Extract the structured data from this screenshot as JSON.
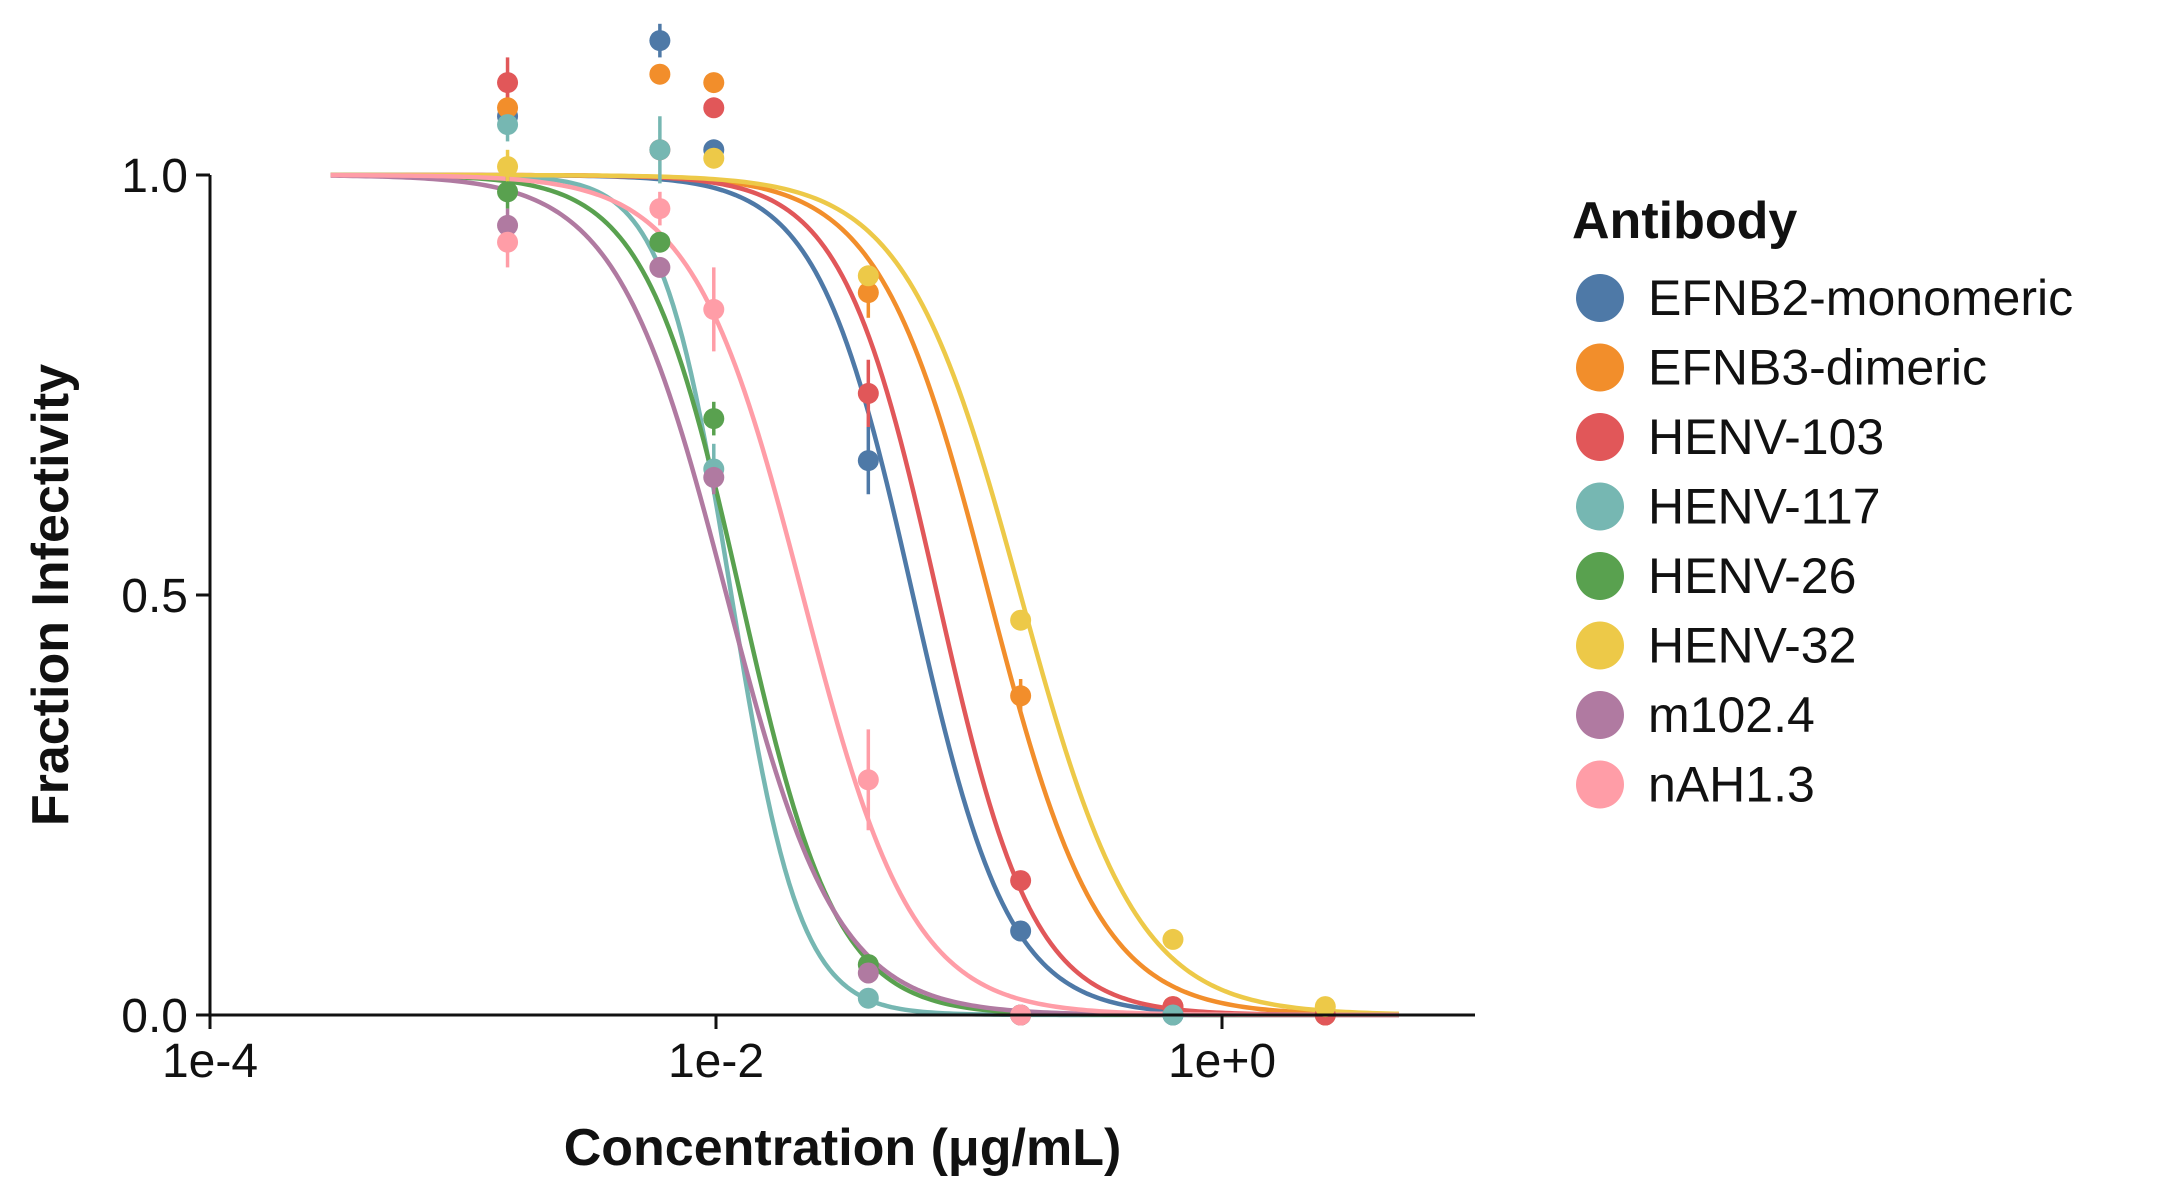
{
  "chart_data": {
    "type": "line",
    "xscale": "log",
    "xlabel": "Concentration (μg/mL)",
    "ylabel": "Fraction Infectivity",
    "xlim": [
      0.0001,
      10
    ],
    "ylim": [
      0,
      1
    ],
    "x_ticks": [
      {
        "value": 0.0001,
        "label": "1e-4"
      },
      {
        "value": 0.01,
        "label": "1e-2"
      },
      {
        "value": 1,
        "label": "1e+0"
      }
    ],
    "y_ticks": [
      {
        "value": 0,
        "label": "0.0"
      },
      {
        "value": 0.5,
        "label": "0.5"
      },
      {
        "value": 1,
        "label": "1.0"
      }
    ],
    "grid": false,
    "legend": {
      "title": "Antibody",
      "position": "right"
    },
    "curve_x_range": [
      0.0003,
      5
    ],
    "series": [
      {
        "name": "EFNB2-monomeric",
        "color": "#4e79a7",
        "ic50": 0.06,
        "hill": 2.3,
        "points": [
          {
            "x": 0.0015,
            "y": 1.07,
            "err": 0.02
          },
          {
            "x": 0.006,
            "y": 1.16,
            "err": 0.02
          },
          {
            "x": 0.0098,
            "y": 1.03,
            "err": 0.01
          },
          {
            "x": 0.04,
            "y": 0.66,
            "err": 0.04
          },
          {
            "x": 0.16,
            "y": 0.1,
            "err": 0.01
          },
          {
            "x": 0.64,
            "y": 0.0,
            "err": 0.005
          },
          {
            "x": 2.56,
            "y": 0.0,
            "err": 0.005
          }
        ]
      },
      {
        "name": "EFNB3-dimeric",
        "color": "#f28e2b",
        "ic50": 0.12,
        "hill": 2.0,
        "points": [
          {
            "x": 0.0015,
            "y": 1.08,
            "err": 0.02
          },
          {
            "x": 0.006,
            "y": 1.12,
            "err": 0.01
          },
          {
            "x": 0.0098,
            "y": 1.11,
            "err": 0.01
          },
          {
            "x": 0.04,
            "y": 0.86,
            "err": 0.03
          },
          {
            "x": 0.16,
            "y": 0.38,
            "err": 0.02
          },
          {
            "x": 0.64,
            "y": 0.01,
            "err": 0.005
          },
          {
            "x": 2.56,
            "y": 0.0,
            "err": 0.005
          }
        ]
      },
      {
        "name": "HENV-103",
        "color": "#e15759",
        "ic50": 0.075,
        "hill": 2.3,
        "points": [
          {
            "x": 0.0015,
            "y": 1.11,
            "err": 0.03
          },
          {
            "x": 0.006,
            "y": 1.03,
            "err": 0.01
          },
          {
            "x": 0.0098,
            "y": 1.08,
            "err": 0.01
          },
          {
            "x": 0.04,
            "y": 0.74,
            "err": 0.04
          },
          {
            "x": 0.16,
            "y": 0.16,
            "err": 0.01
          },
          {
            "x": 0.64,
            "y": 0.01,
            "err": 0.005
          },
          {
            "x": 2.56,
            "y": 0.0,
            "err": 0.005
          }
        ]
      },
      {
        "name": "HENV-117",
        "color": "#76b7b2",
        "ic50": 0.0115,
        "hill": 3.2,
        "points": [
          {
            "x": 0.0015,
            "y": 1.06,
            "err": 0.02
          },
          {
            "x": 0.006,
            "y": 1.03,
            "err": 0.04
          },
          {
            "x": 0.0098,
            "y": 0.65,
            "err": 0.03
          },
          {
            "x": 0.04,
            "y": 0.02,
            "err": 0.005
          },
          {
            "x": 0.16,
            "y": 0.0,
            "err": 0.005
          },
          {
            "x": 0.64,
            "y": 0.0,
            "err": 0.005
          }
        ]
      },
      {
        "name": "HENV-26",
        "color": "#59a14f",
        "ic50": 0.0125,
        "hill": 2.3,
        "points": [
          {
            "x": 0.0015,
            "y": 0.98,
            "err": 0.02
          },
          {
            "x": 0.006,
            "y": 0.92,
            "err": 0.01
          },
          {
            "x": 0.0098,
            "y": 0.71,
            "err": 0.02
          },
          {
            "x": 0.04,
            "y": 0.06,
            "err": 0.01
          },
          {
            "x": 0.16,
            "y": 0.0,
            "err": 0.005
          }
        ]
      },
      {
        "name": "HENV-32",
        "color": "#edc948",
        "ic50": 0.16,
        "hill": 1.9,
        "points": [
          {
            "x": 0.0015,
            "y": 1.01,
            "err": 0.02
          },
          {
            "x": 0.0098,
            "y": 1.02,
            "err": 0.01
          },
          {
            "x": 0.04,
            "y": 0.88,
            "err": 0.01
          },
          {
            "x": 0.16,
            "y": 0.47,
            "err": 0.01
          },
          {
            "x": 0.64,
            "y": 0.09,
            "err": 0.01
          },
          {
            "x": 2.56,
            "y": 0.01,
            "err": 0.005
          }
        ]
      },
      {
        "name": "m102.4",
        "color": "#b07aa1",
        "ic50": 0.011,
        "hill": 2.0,
        "points": [
          {
            "x": 0.0015,
            "y": 0.94,
            "err": 0.02
          },
          {
            "x": 0.006,
            "y": 0.89,
            "err": 0.01
          },
          {
            "x": 0.0098,
            "y": 0.64,
            "err": 0.02
          },
          {
            "x": 0.04,
            "y": 0.05,
            "err": 0.01
          },
          {
            "x": 0.16,
            "y": 0.0,
            "err": 0.005
          }
        ]
      },
      {
        "name": "nAH1.3",
        "color": "#ff9da7",
        "ic50": 0.022,
        "hill": 2.0,
        "points": [
          {
            "x": 0.0015,
            "y": 0.92,
            "err": 0.03
          },
          {
            "x": 0.006,
            "y": 0.96,
            "err": 0.02
          },
          {
            "x": 0.0098,
            "y": 0.84,
            "err": 0.05
          },
          {
            "x": 0.04,
            "y": 0.28,
            "err": 0.06
          },
          {
            "x": 0.16,
            "y": 0.0,
            "err": 0.005
          }
        ]
      }
    ]
  }
}
